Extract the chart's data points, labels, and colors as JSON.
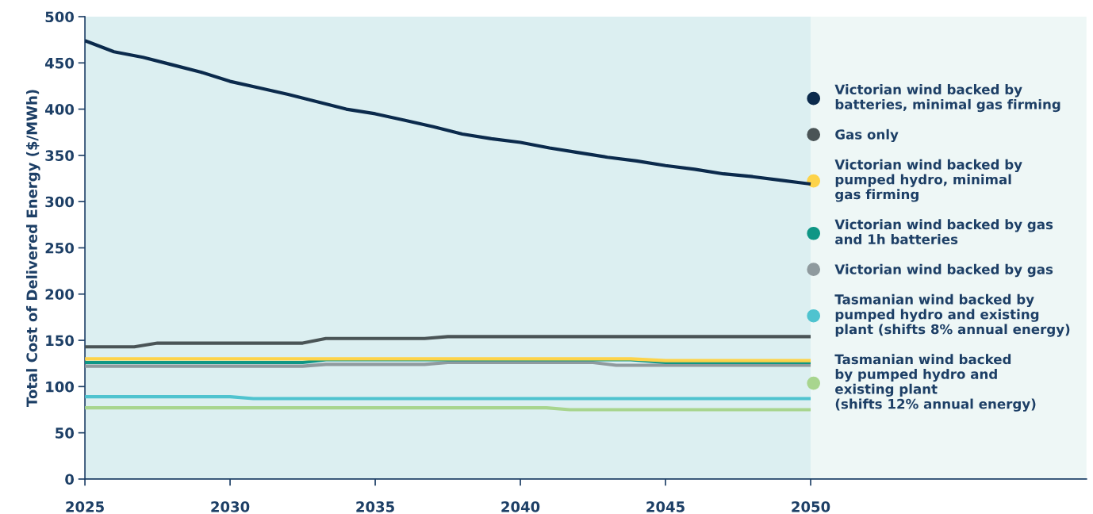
{
  "chart_data": {
    "type": "line",
    "ylabel": "Total Cost of Delivered Energy ($/MWh)",
    "xlim": [
      2025,
      2059.5
    ],
    "ylim": [
      0,
      500
    ],
    "xticks": [
      2025,
      2030,
      2035,
      2040,
      2045,
      2050
    ],
    "yticks": [
      0,
      50,
      100,
      150,
      200,
      250,
      300,
      350,
      400,
      450,
      500
    ],
    "grid": false,
    "legend": "right",
    "bands": [
      {
        "axis": "x",
        "from": 2025,
        "to": 2050,
        "color": "#dceff1"
      }
    ],
    "series": [
      {
        "name": "Victorian wind backed by\nbatteries, minimal gas firming",
        "color": "#0b2a4c",
        "x": [
          2025,
          2026,
          2027,
          2028,
          2029,
          2030,
          2031,
          2032,
          2033,
          2034,
          2035,
          2036,
          2037,
          2038,
          2039,
          2040,
          2041,
          2042,
          2043,
          2044,
          2045,
          2046,
          2047,
          2048,
          2049,
          2050
        ],
        "values": [
          474,
          462,
          456,
          448,
          440,
          430,
          423,
          416,
          408,
          400,
          395,
          388,
          381,
          373,
          368,
          364,
          358,
          353,
          348,
          344,
          339,
          335,
          330,
          327,
          323,
          319
        ]
      },
      {
        "name": "Gas only",
        "color": "#4a5456",
        "x": [
          2025,
          2026.7,
          2027.5,
          2032.5,
          2033.3,
          2036.7,
          2037.5,
          2050
        ],
        "values": [
          143,
          143,
          147,
          147,
          152,
          152,
          154,
          154
        ]
      },
      {
        "name": "Victorian wind backed by\npumped hydro, minimal\ngas firming",
        "color": "#fdd34a",
        "x": [
          2025,
          2043.8,
          2045,
          2050
        ],
        "values": [
          130,
          130,
          128,
          128
        ]
      },
      {
        "name": "Victorian wind backed by gas\nand 1h batteries",
        "color": "#0f9685",
        "x": [
          2025,
          2032.5,
          2033.3,
          2043.8,
          2045,
          2050
        ],
        "values": [
          126,
          126,
          129,
          129,
          126,
          126
        ]
      },
      {
        "name": "Victorian wind backed by gas",
        "color": "#8f9a9e",
        "x": [
          2025,
          2032.5,
          2033.3,
          2036.7,
          2037.5,
          2042.5,
          2043.3,
          2050
        ],
        "values": [
          122,
          122,
          124,
          124,
          126,
          126,
          123,
          123
        ]
      },
      {
        "name": "Tasmanian wind backed by\npumped hydro and existing\nplant (shifts 8% annual energy)",
        "color": "#4fc3cf",
        "x": [
          2025,
          2030,
          2030.8,
          2050
        ],
        "values": [
          89,
          89,
          87,
          87
        ]
      },
      {
        "name": "Tasmanian wind backed\nby pumped hydro and\nexisting plant\n(shifts 12% annual energy)",
        "color": "#a8d58e",
        "x": [
          2025,
          2040.9,
          2041.7,
          2050
        ],
        "values": [
          77,
          77,
          75,
          75
        ]
      }
    ]
  }
}
